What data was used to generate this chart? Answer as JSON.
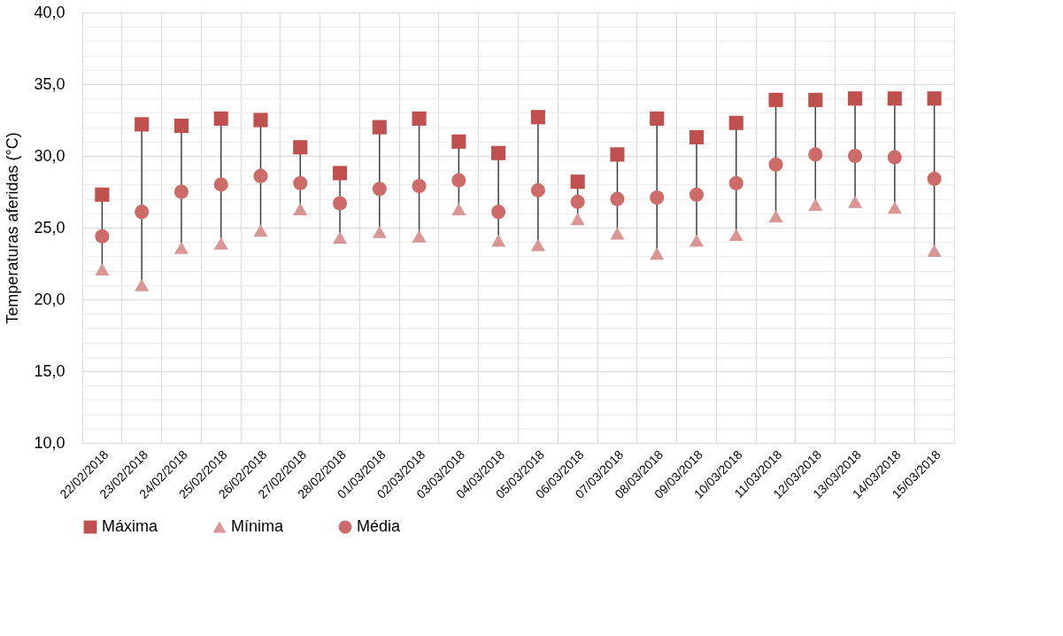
{
  "chart_data": {
    "type": "scatter",
    "ylabel": "Temperaturas aferidas (°C)",
    "categories": [
      "22/02/2018",
      "23/02/2018",
      "24/02/2018",
      "25/02/2018",
      "26/02/2018",
      "27/02/2018",
      "28/02/2018",
      "01/03/2018",
      "02/03/2018",
      "03/03/2018",
      "04/03/2018",
      "05/03/2018",
      "06/03/2018",
      "07/03/2018",
      "08/03/2018",
      "09/03/2018",
      "10/03/2018",
      "11/03/2018",
      "12/03/2018",
      "13/03/2018",
      "14/03/2018",
      "15/03/2018"
    ],
    "series": [
      {
        "name": "Máxima",
        "color": "#c0504d",
        "marker": "square",
        "values": [
          27.3,
          32.2,
          32.1,
          32.6,
          32.5,
          30.6,
          28.8,
          32.0,
          32.6,
          31.0,
          30.2,
          32.7,
          28.2,
          30.1,
          32.6,
          31.3,
          32.3,
          33.9,
          33.9,
          34.0,
          34.0,
          34.0
        ]
      },
      {
        "name": "Mínima",
        "color": "#da9694",
        "marker": "triangle",
        "values": [
          22.1,
          21.0,
          23.6,
          23.9,
          24.8,
          26.3,
          24.3,
          24.7,
          24.4,
          26.3,
          24.1,
          23.8,
          25.6,
          24.6,
          23.2,
          24.1,
          24.5,
          25.8,
          26.6,
          26.8,
          26.4,
          23.4
        ]
      },
      {
        "name": "Média",
        "color": "#cd6b68",
        "marker": "circle",
        "values": [
          24.4,
          26.1,
          27.5,
          28.0,
          28.6,
          28.1,
          26.7,
          27.7,
          27.9,
          28.3,
          26.1,
          27.6,
          26.8,
          27.0,
          27.1,
          27.3,
          28.1,
          29.4,
          30.1,
          30.0,
          29.9,
          28.4
        ]
      }
    ],
    "ylim": [
      10,
      40
    ],
    "yticks": [
      {
        "value": 10,
        "label": "10,0"
      },
      {
        "value": 11,
        "label": null
      },
      {
        "value": 12,
        "label": null
      },
      {
        "value": 13,
        "label": null
      },
      {
        "value": 14,
        "label": null
      },
      {
        "value": 15,
        "label": "15,0"
      },
      {
        "value": 16,
        "label": null
      },
      {
        "value": 17,
        "label": null
      },
      {
        "value": 18,
        "label": null
      },
      {
        "value": 19,
        "label": null
      },
      {
        "value": 20,
        "label": "20,0"
      },
      {
        "value": 21,
        "label": null
      },
      {
        "value": 22,
        "label": null
      },
      {
        "value": 23,
        "label": null
      },
      {
        "value": 24,
        "label": null
      },
      {
        "value": 25,
        "label": "25,0"
      },
      {
        "value": 26,
        "label": null
      },
      {
        "value": 27,
        "label": null
      },
      {
        "value": 28,
        "label": null
      },
      {
        "value": 29,
        "label": null
      },
      {
        "value": 30,
        "label": "30,0"
      },
      {
        "value": 31,
        "label": null
      },
      {
        "value": 32,
        "label": null
      },
      {
        "value": 33,
        "label": null
      },
      {
        "value": 34,
        "label": null
      },
      {
        "value": 35,
        "label": "35,0"
      },
      {
        "value": 36,
        "label": null
      },
      {
        "value": 37,
        "label": null
      },
      {
        "value": 38,
        "label": null
      },
      {
        "value": 39,
        "label": null
      },
      {
        "value": 40,
        "label": "40,0"
      }
    ],
    "grid": true,
    "legend": "bottom"
  }
}
